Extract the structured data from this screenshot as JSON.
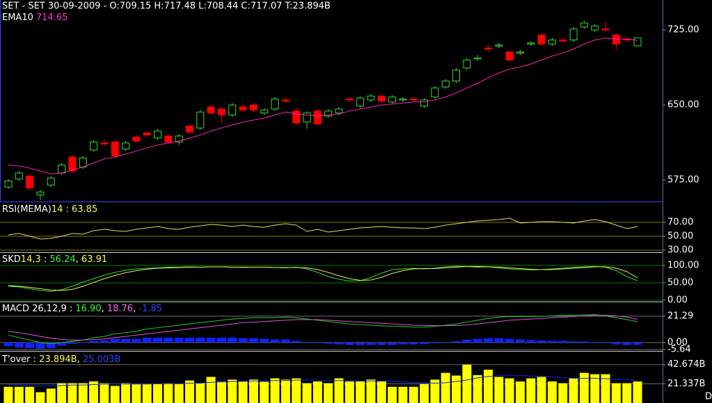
{
  "chart_data": [
    {
      "type": "candlestick",
      "title": "SET - SET 30-09-2009 - O:709.15 H:717.48 L:708.44 C:717.07 T:23.894B",
      "legend": [
        {
          "text": "EMA10",
          "color": "#ffffff"
        },
        {
          "text": "714.65",
          "color": "#ff33cc"
        }
      ],
      "up_color": "#33dd33",
      "down_color": "#ff0000",
      "open": [
        568,
        576,
        579,
        560,
        570,
        582,
        598,
        588,
        605,
        612,
        613,
        606,
        618,
        622,
        617,
        619,
        613,
        629,
        627,
        648,
        646,
        640,
        648,
        650,
        642,
        646,
        655,
        644,
        633,
        644,
        639,
        642,
        656,
        649,
        655,
        659,
        653,
        655,
        656,
        649,
        658,
        668,
        674,
        687,
        696,
        707,
        709,
        703,
        702,
        711,
        720,
        711,
        715,
        715,
        728,
        725,
        726,
        720,
        716,
        709.15
      ],
      "high": [
        576,
        584,
        581,
        565,
        579,
        592,
        600,
        599,
        615,
        616,
        615,
        614,
        620,
        624,
        626,
        621,
        621,
        631,
        645,
        650,
        648,
        652,
        650,
        652,
        647,
        658,
        658,
        647,
        644,
        646,
        646,
        648,
        658,
        659,
        661,
        661,
        660,
        658,
        658,
        657,
        669,
        676,
        687,
        697,
        700,
        710,
        712,
        705,
        705,
        714,
        722,
        717,
        717,
        728,
        734,
        731,
        733,
        722,
        718,
        717.48
      ],
      "low": [
        566,
        574,
        565,
        555,
        568,
        580,
        582,
        586,
        603,
        609,
        597,
        604,
        612,
        618,
        615,
        611,
        610,
        621,
        625,
        640,
        632,
        638,
        643,
        643,
        640,
        644,
        652,
        630,
        626,
        629,
        637,
        640,
        653,
        647,
        653,
        652,
        651,
        653,
        653,
        647,
        656,
        666,
        672,
        685,
        694,
        703,
        707,
        693,
        700,
        709,
        709,
        709,
        712,
        713,
        726,
        723,
        723,
        705,
        713,
        708.44
      ],
      "close": [
        574,
        582,
        567,
        563,
        577,
        590,
        584,
        597,
        613,
        611,
        599,
        612,
        614,
        620,
        624,
        613,
        619,
        623,
        643,
        642,
        640,
        650,
        645,
        645,
        645,
        656,
        654,
        632,
        642,
        631,
        644,
        646,
        655,
        657,
        659,
        654,
        658,
        656,
        655,
        655,
        667,
        674,
        685,
        695,
        697,
        706,
        710,
        695,
        703,
        712,
        711,
        715,
        714,
        726,
        732,
        729,
        725,
        711,
        715,
        717.07
      ],
      "series": [
        {
          "color": "#ff22bb",
          "values": [
            590,
            589,
            587,
            584,
            581,
            582,
            585,
            588,
            592,
            596,
            598,
            601,
            604,
            607,
            610,
            612,
            614,
            617,
            620,
            624,
            627,
            630,
            633,
            635,
            637,
            640,
            643,
            641,
            640,
            639,
            640,
            641,
            644,
            646,
            648,
            650,
            651,
            652,
            653,
            653,
            655,
            658,
            662,
            667,
            672,
            677,
            682,
            686,
            688,
            691,
            695,
            699,
            702,
            706,
            711,
            715,
            717,
            716,
            716,
            714.65
          ]
        }
      ],
      "ylim": [
        553.5,
        755
      ],
      "yticks": [
        {
          "value": 575,
          "label": "575.00"
        },
        {
          "value": 650,
          "label": "650.00"
        },
        {
          "value": 725,
          "label": "725.00"
        }
      ],
      "grid": false
    },
    {
      "type": "line",
      "legend": [
        {
          "text": "RSI(MEMA)",
          "color": "#ffffff"
        },
        {
          "text": "14 : 63.85",
          "color": "#ffff44"
        }
      ],
      "series": [
        {
          "color": "#e0e060",
          "values": [
            52,
            54,
            50,
            46,
            47,
            50,
            54,
            53,
            58,
            60,
            58,
            57,
            60,
            62,
            64,
            61,
            60,
            63,
            65,
            67,
            66,
            64,
            66,
            64,
            63,
            66,
            68,
            66,
            57,
            60,
            56,
            58,
            60,
            62,
            63,
            64,
            63,
            62,
            62,
            61,
            63,
            66,
            68,
            70,
            72,
            73,
            74,
            76,
            69,
            70,
            71,
            71,
            70,
            69,
            72,
            74,
            71,
            66,
            61,
            63.85
          ]
        }
      ],
      "ylim": [
        27,
        99
      ],
      "yticks": [
        {
          "value": 30,
          "label": "30.00"
        },
        {
          "value": 50,
          "label": "50.00"
        },
        {
          "value": 70,
          "label": "70.00"
        }
      ],
      "grid": true,
      "grid_color": "#808000"
    },
    {
      "type": "line",
      "legend": [
        {
          "text": "SKD",
          "color": "#ffffff"
        },
        {
          "text": "14,3",
          "color": "#ffff44"
        },
        {
          "text": " : ",
          "color": "#ffffff"
        },
        {
          "text": "56.24",
          "color": "#33ff33"
        },
        {
          "text": ", ",
          "color": "#ffffff"
        },
        {
          "text": "63.91",
          "color": "#ffff44"
        }
      ],
      "series": [
        {
          "color": "#33dd33",
          "values": [
            40,
            38,
            33,
            28,
            25,
            30,
            40,
            52,
            62,
            72,
            80,
            86,
            90,
            92,
            93,
            95,
            95,
            96,
            95,
            96,
            96,
            95,
            94,
            95,
            95,
            94,
            93,
            95,
            90,
            80,
            68,
            60,
            55,
            56,
            65,
            78,
            88,
            90,
            92,
            90,
            92,
            96,
            98,
            97,
            95,
            96,
            93,
            90,
            88,
            87,
            88,
            90,
            92,
            95,
            96,
            97,
            95,
            85,
            68,
            56.24
          ]
        },
        {
          "color": "#eeee55",
          "values": [
            42,
            40,
            37,
            33,
            29,
            28,
            31,
            40,
            51,
            62,
            71,
            79,
            85,
            89,
            92,
            93,
            94,
            95,
            95,
            96,
            96,
            95,
            95,
            95,
            95,
            94,
            94,
            94,
            93,
            88,
            80,
            70,
            62,
            57,
            58,
            66,
            77,
            85,
            90,
            91,
            91,
            93,
            95,
            97,
            97,
            96,
            95,
            93,
            91,
            89,
            88,
            88,
            90,
            92,
            94,
            96,
            96,
            92,
            82,
            63.91
          ]
        }
      ],
      "ylim": [
        -4,
        136
      ],
      "yticks": [
        {
          "value": 0,
          "label": "0.00"
        },
        {
          "value": 50,
          "label": "50.00"
        },
        {
          "value": 100,
          "label": "100.00"
        }
      ],
      "grid": true,
      "grid_color": "#008000"
    },
    {
      "type": "line",
      "legend": [
        {
          "text": "MACD 26,12,9 : ",
          "color": "#ffffff"
        },
        {
          "text": "16.90",
          "color": "#33ff33"
        },
        {
          "text": ", ",
          "color": "#ffffff"
        },
        {
          "text": "18.76",
          "color": "#ff66ff"
        },
        {
          "text": ", ",
          "color": "#ffffff"
        },
        {
          "text": "-1.85",
          "color": "#3344ff"
        }
      ],
      "series": [
        {
          "color": "#22cc22",
          "values": [
            6,
            4,
            2,
            0,
            -1,
            0,
            1,
            2,
            4,
            5,
            7,
            8,
            9,
            11,
            12,
            13,
            14,
            15,
            16,
            17,
            18,
            19,
            19.5,
            20,
            20,
            20,
            20.5,
            20,
            19,
            18,
            17,
            16,
            15,
            14.5,
            14,
            13.5,
            13,
            13,
            12.5,
            12.5,
            13,
            14,
            15,
            16.5,
            18,
            19.5,
            20.5,
            21,
            21,
            21,
            21.2,
            21.5,
            22,
            22,
            22.3,
            22.5,
            21.5,
            20,
            18.5,
            16.9
          ]
        },
        {
          "color": "#dd55dd",
          "values": [
            9,
            8,
            6.5,
            5,
            3.5,
            2.5,
            2,
            2,
            2.5,
            3,
            4,
            5,
            6,
            7,
            8,
            9,
            10,
            11,
            12,
            13,
            14,
            15,
            16,
            16.5,
            17,
            17.5,
            18,
            18.5,
            18.5,
            18.5,
            18,
            17.5,
            17,
            16.5,
            16,
            15.5,
            15,
            14.5,
            14,
            13.8,
            13.6,
            13.6,
            13.8,
            14.2,
            15,
            16,
            17,
            18,
            18.5,
            19,
            19.5,
            20,
            20.5,
            21,
            21.5,
            22,
            22,
            21.5,
            20.5,
            18.76
          ]
        }
      ],
      "histogram": {
        "color": "#1122ff",
        "values": [
          -3,
          -4,
          -4.5,
          -5,
          -4.5,
          -2.5,
          -1,
          0,
          1.5,
          2,
          3,
          3,
          3,
          4,
          4,
          4,
          4,
          4,
          4,
          4,
          4,
          4,
          3.5,
          3.5,
          3,
          2.5,
          2.5,
          1.5,
          0.5,
          -0.5,
          -1,
          -1.5,
          -2,
          -2,
          -2,
          -2,
          -2,
          -1.5,
          -1.5,
          -1.3,
          -0.6,
          0.4,
          1.2,
          2.3,
          3,
          3.5,
          3.5,
          3,
          2.5,
          2,
          1.7,
          1.5,
          1.5,
          1,
          0.8,
          0.5,
          -0.5,
          -1.5,
          -2,
          -1.85
        ]
      },
      "ylim": [
        -6.72,
        32.5
      ],
      "yticks": [
        -5.64,
        {
          "value": 0,
          "label": "0.00"
        },
        21.29
      ],
      "grid": true,
      "grid_color": "#707070"
    },
    {
      "type": "bar",
      "legend": [
        {
          "text": "T'over : ",
          "color": "#ffffff"
        },
        {
          "text": "23.894B",
          "color": "#ffff44"
        },
        {
          "text": ", ",
          "color": "#ffffff"
        },
        {
          "text": "25.003B",
          "color": "#3344ff"
        }
      ],
      "color": "#ffff00",
      "values": [
        18,
        18,
        18,
        12,
        16,
        22,
        22,
        22,
        24,
        22,
        19,
        22,
        21,
        21,
        21,
        22,
        21,
        25,
        22,
        29,
        24,
        26,
        24,
        26,
        23.6,
        27.4,
        26,
        27.4,
        22,
        24,
        22,
        27.4,
        24,
        24,
        26,
        24,
        18,
        18,
        18,
        21,
        26,
        33.5,
        30.5,
        42.7,
        31,
        37,
        29,
        27.4,
        24,
        27.4,
        29,
        24,
        22,
        27.4,
        33.5,
        32,
        32,
        22,
        22,
        23.894
      ],
      "series": [
        {
          "color": "#1122ff",
          "values": [
            20,
            20,
            19.5,
            19,
            19,
            19.5,
            20,
            20,
            20.5,
            21,
            21,
            21,
            21,
            21,
            21.5,
            21.5,
            21.5,
            22,
            22,
            23,
            23.5,
            24,
            24,
            24.5,
            24.5,
            25,
            25,
            25.5,
            25.5,
            25.5,
            25,
            25,
            25,
            24.5,
            24.5,
            24.5,
            24,
            23.5,
            23,
            22.5,
            22,
            22.5,
            24,
            25.5,
            28,
            29.5,
            30.5,
            31,
            30.5,
            30,
            29.5,
            29,
            28,
            27.5,
            27.5,
            27.5,
            27,
            26.5,
            26,
            25.003
          ]
        }
      ],
      "ylim": [
        0,
        57.15
      ],
      "yticks": [
        {
          "value": 21.337,
          "label": "21.337B"
        },
        {
          "value": 42.674,
          "label": "42.674B"
        }
      ],
      "grid": true,
      "grid_color": "#707070",
      "period": "D"
    }
  ]
}
